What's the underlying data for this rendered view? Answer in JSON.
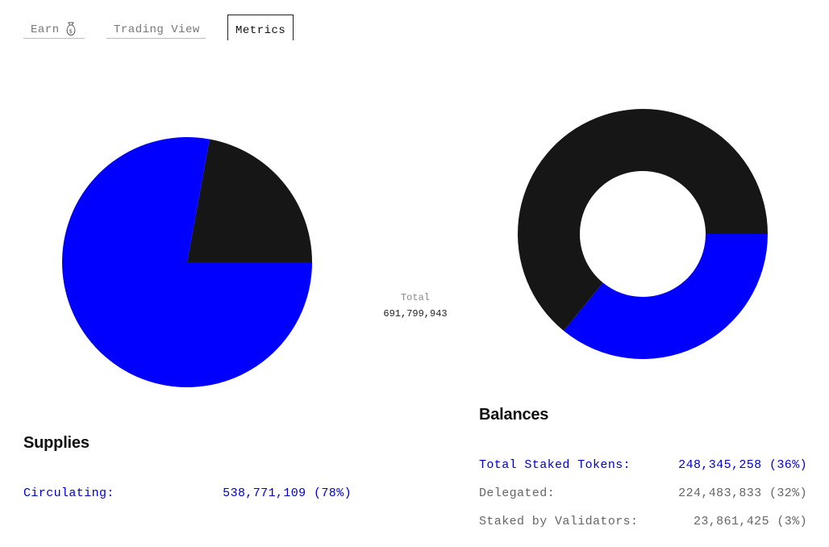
{
  "tabs": {
    "earn": {
      "label": "Earn",
      "icon": "money-bag-icon"
    },
    "trading_view": {
      "label": "Trading View"
    },
    "metrics": {
      "label": "Metrics",
      "active": true
    }
  },
  "center": {
    "total_label": "Total",
    "total_value": "691,799,943"
  },
  "supplies": {
    "title": "Supplies",
    "rows": [
      {
        "label": "Circulating:",
        "value": "538,771,109 (78%)",
        "color": "#0000cc"
      }
    ]
  },
  "balances": {
    "title": "Balances",
    "rows": [
      {
        "label": "Total Staked Tokens:",
        "value": "248,345,258 (36%)",
        "color": "#0000cc"
      },
      {
        "label": "Delegated:",
        "value": "224,483,833 (32%)",
        "color": "#666666"
      },
      {
        "label": "Staked by Validators:",
        "value": "23,861,425 (3%)",
        "color": "#666666"
      }
    ]
  },
  "colors": {
    "primary_blue": "#0000ff",
    "dark": "#161616",
    "muted_text": "#777777"
  },
  "chart_data": [
    {
      "type": "pie",
      "categories": [
        "Circulating",
        "Other"
      ],
      "values": [
        538771109,
        153028834
      ],
      "colors": [
        "#0000ff",
        "#161616"
      ]
    },
    {
      "type": "pie",
      "variant": "donut",
      "categories": [
        "Total Staked Tokens",
        "Other"
      ],
      "values": [
        248345258,
        443454685
      ],
      "colors": [
        "#0000ff",
        "#161616"
      ]
    }
  ]
}
